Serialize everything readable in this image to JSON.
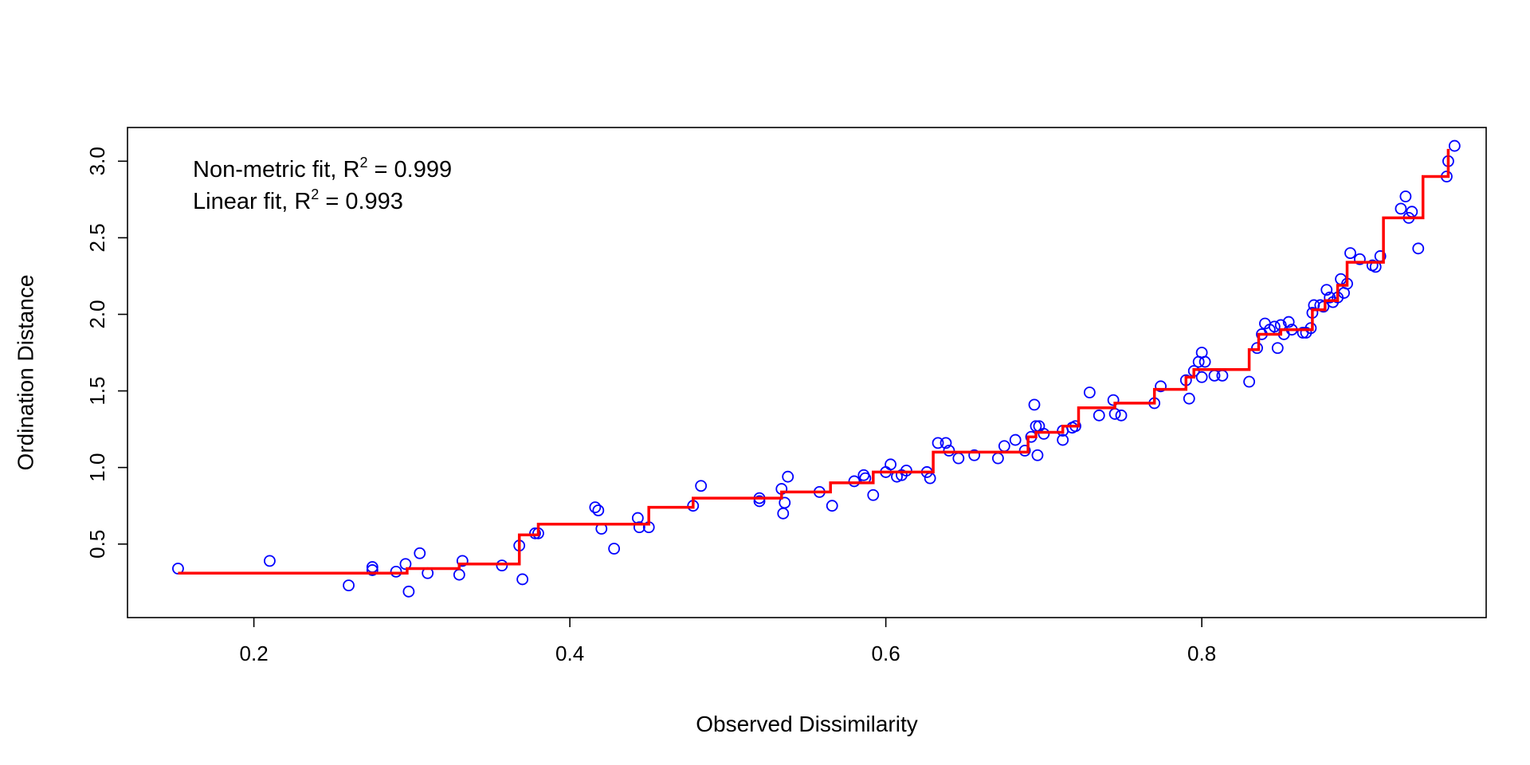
{
  "chart_data": {
    "type": "scatter",
    "title": "",
    "xlabel": "Observed Dissimilarity",
    "ylabel": "Ordination Distance",
    "xlim": [
      0.12,
      0.98
    ],
    "ylim": [
      0.02,
      3.22
    ],
    "x_ticks": [
      0.2,
      0.4,
      0.6,
      0.8
    ],
    "x_tick_labels": [
      "0.2",
      "0.4",
      "0.6",
      "0.8"
    ],
    "y_ticks": [
      0.5,
      1.0,
      1.5,
      2.0,
      2.5,
      3.0
    ],
    "y_tick_labels": [
      "0.5",
      "1.0",
      "1.5",
      "2.0",
      "2.5",
      "3.0"
    ],
    "grid": false,
    "legend_position": "top-left",
    "legend": {
      "line1": {
        "before": "Non-metric fit, R",
        "sup": "2",
        "after": " = 0.999"
      },
      "line2": {
        "before": "Linear fit, R",
        "sup": "2",
        "after": " = 0.993"
      }
    },
    "colors": {
      "points": "#0000FF",
      "step_line": "#FF0000",
      "axes": "#000000"
    },
    "points": [
      [
        0.152,
        0.34
      ],
      [
        0.21,
        0.39
      ],
      [
        0.26,
        0.23
      ],
      [
        0.275,
        0.35
      ],
      [
        0.275,
        0.33
      ],
      [
        0.29,
        0.32
      ],
      [
        0.296,
        0.37
      ],
      [
        0.298,
        0.19
      ],
      [
        0.305,
        0.44
      ],
      [
        0.31,
        0.31
      ],
      [
        0.33,
        0.3
      ],
      [
        0.332,
        0.39
      ],
      [
        0.357,
        0.36
      ],
      [
        0.368,
        0.49
      ],
      [
        0.37,
        0.27
      ],
      [
        0.378,
        0.57
      ],
      [
        0.38,
        0.57
      ],
      [
        0.416,
        0.74
      ],
      [
        0.418,
        0.72
      ],
      [
        0.42,
        0.6
      ],
      [
        0.428,
        0.47
      ],
      [
        0.443,
        0.67
      ],
      [
        0.444,
        0.61
      ],
      [
        0.45,
        0.61
      ],
      [
        0.478,
        0.75
      ],
      [
        0.483,
        0.88
      ],
      [
        0.52,
        0.8
      ],
      [
        0.52,
        0.78
      ],
      [
        0.534,
        0.86
      ],
      [
        0.535,
        0.7
      ],
      [
        0.536,
        0.77
      ],
      [
        0.538,
        0.94
      ],
      [
        0.558,
        0.84
      ],
      [
        0.566,
        0.75
      ],
      [
        0.58,
        0.91
      ],
      [
        0.586,
        0.95
      ],
      [
        0.587,
        0.93
      ],
      [
        0.592,
        0.82
      ],
      [
        0.6,
        0.97
      ],
      [
        0.603,
        1.02
      ],
      [
        0.607,
        0.94
      ],
      [
        0.61,
        0.95
      ],
      [
        0.613,
        0.98
      ],
      [
        0.626,
        0.97
      ],
      [
        0.628,
        0.93
      ],
      [
        0.633,
        1.16
      ],
      [
        0.638,
        1.16
      ],
      [
        0.64,
        1.11
      ],
      [
        0.646,
        1.06
      ],
      [
        0.656,
        1.08
      ],
      [
        0.671,
        1.06
      ],
      [
        0.675,
        1.14
      ],
      [
        0.682,
        1.18
      ],
      [
        0.688,
        1.11
      ],
      [
        0.692,
        1.2
      ],
      [
        0.694,
        1.41
      ],
      [
        0.695,
        1.27
      ],
      [
        0.696,
        1.08
      ],
      [
        0.697,
        1.27
      ],
      [
        0.7,
        1.22
      ],
      [
        0.712,
        1.18
      ],
      [
        0.712,
        1.24
      ],
      [
        0.718,
        1.26
      ],
      [
        0.72,
        1.27
      ],
      [
        0.729,
        1.49
      ],
      [
        0.735,
        1.34
      ],
      [
        0.744,
        1.44
      ],
      [
        0.745,
        1.35
      ],
      [
        0.749,
        1.34
      ],
      [
        0.77,
        1.42
      ],
      [
        0.774,
        1.53
      ],
      [
        0.79,
        1.57
      ],
      [
        0.792,
        1.45
      ],
      [
        0.795,
        1.63
      ],
      [
        0.798,
        1.69
      ],
      [
        0.8,
        1.59
      ],
      [
        0.8,
        1.75
      ],
      [
        0.802,
        1.69
      ],
      [
        0.808,
        1.6
      ],
      [
        0.813,
        1.6
      ],
      [
        0.83,
        1.56
      ],
      [
        0.835,
        1.78
      ],
      [
        0.838,
        1.87
      ],
      [
        0.84,
        1.94
      ],
      [
        0.843,
        1.9
      ],
      [
        0.846,
        1.92
      ],
      [
        0.848,
        1.78
      ],
      [
        0.85,
        1.93
      ],
      [
        0.852,
        1.87
      ],
      [
        0.855,
        1.95
      ],
      [
        0.857,
        1.9
      ],
      [
        0.864,
        1.88
      ],
      [
        0.866,
        1.88
      ],
      [
        0.869,
        1.91
      ],
      [
        0.87,
        2.01
      ],
      [
        0.871,
        2.06
      ],
      [
        0.875,
        2.06
      ],
      [
        0.877,
        2.05
      ],
      [
        0.879,
        2.16
      ],
      [
        0.881,
        2.11
      ],
      [
        0.883,
        2.08
      ],
      [
        0.886,
        2.11
      ],
      [
        0.888,
        2.23
      ],
      [
        0.89,
        2.14
      ],
      [
        0.892,
        2.2
      ],
      [
        0.894,
        2.4
      ],
      [
        0.9,
        2.36
      ],
      [
        0.908,
        2.32
      ],
      [
        0.91,
        2.31
      ],
      [
        0.913,
        2.38
      ],
      [
        0.926,
        2.69
      ],
      [
        0.929,
        2.77
      ],
      [
        0.931,
        2.63
      ],
      [
        0.933,
        2.67
      ],
      [
        0.937,
        2.43
      ],
      [
        0.955,
        2.9
      ],
      [
        0.956,
        3.0
      ],
      [
        0.96,
        3.1
      ]
    ],
    "step_line": [
      [
        0.152,
        0.31
      ],
      [
        0.297,
        0.31
      ],
      [
        0.297,
        0.34
      ],
      [
        0.33,
        0.34
      ],
      [
        0.33,
        0.37
      ],
      [
        0.368,
        0.37
      ],
      [
        0.368,
        0.56
      ],
      [
        0.38,
        0.56
      ],
      [
        0.38,
        0.63
      ],
      [
        0.45,
        0.63
      ],
      [
        0.45,
        0.74
      ],
      [
        0.478,
        0.74
      ],
      [
        0.478,
        0.8
      ],
      [
        0.534,
        0.8
      ],
      [
        0.534,
        0.84
      ],
      [
        0.565,
        0.84
      ],
      [
        0.565,
        0.9
      ],
      [
        0.592,
        0.9
      ],
      [
        0.592,
        0.97
      ],
      [
        0.63,
        0.97
      ],
      [
        0.63,
        1.1
      ],
      [
        0.69,
        1.1
      ],
      [
        0.69,
        1.13
      ],
      [
        0.69,
        1.13
      ],
      [
        0.69,
        1.2
      ],
      [
        0.695,
        1.2
      ],
      [
        0.695,
        1.23
      ],
      [
        0.712,
        1.23
      ],
      [
        0.712,
        1.27
      ],
      [
        0.722,
        1.27
      ],
      [
        0.722,
        1.39
      ],
      [
        0.745,
        1.39
      ],
      [
        0.745,
        1.42
      ],
      [
        0.77,
        1.42
      ],
      [
        0.77,
        1.51
      ],
      [
        0.79,
        1.51
      ],
      [
        0.79,
        1.59
      ],
      [
        0.795,
        1.59
      ],
      [
        0.795,
        1.64
      ],
      [
        0.83,
        1.64
      ],
      [
        0.83,
        1.77
      ],
      [
        0.836,
        1.77
      ],
      [
        0.836,
        1.87
      ],
      [
        0.85,
        1.87
      ],
      [
        0.85,
        1.9
      ],
      [
        0.87,
        1.9
      ],
      [
        0.87,
        2.03
      ],
      [
        0.878,
        2.03
      ],
      [
        0.878,
        2.09
      ],
      [
        0.886,
        2.09
      ],
      [
        0.886,
        2.19
      ],
      [
        0.892,
        2.19
      ],
      [
        0.892,
        2.34
      ],
      [
        0.915,
        2.34
      ],
      [
        0.915,
        2.63
      ],
      [
        0.94,
        2.63
      ],
      [
        0.94,
        2.9
      ],
      [
        0.956,
        2.9
      ],
      [
        0.956,
        3.08
      ]
    ]
  }
}
